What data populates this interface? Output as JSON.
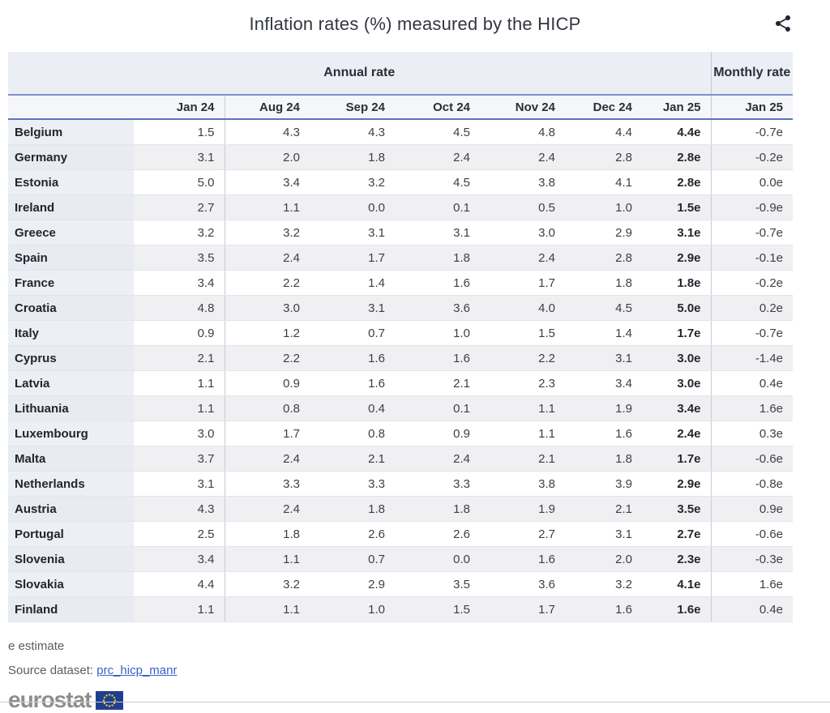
{
  "page": {
    "title": "Inflation rates (%) measured by the HICP"
  },
  "table": {
    "annual_header": "Annual rate",
    "monthly_header": "Monthly rate",
    "columns": [
      "Jan 24",
      "Aug 24",
      "Sep 24",
      "Oct 24",
      "Nov 24",
      "Dec 24",
      "Jan 25"
    ],
    "monthly_column": "Jan 25",
    "rows": [
      {
        "country": "Belgium",
        "values": [
          "1.5",
          "4.3",
          "4.3",
          "4.5",
          "4.8",
          "4.4",
          "4.4e"
        ],
        "monthly": "-0.7e"
      },
      {
        "country": "Germany",
        "values": [
          "3.1",
          "2.0",
          "1.8",
          "2.4",
          "2.4",
          "2.8",
          "2.8e"
        ],
        "monthly": "-0.2e"
      },
      {
        "country": "Estonia",
        "values": [
          "5.0",
          "3.4",
          "3.2",
          "4.5",
          "3.8",
          "4.1",
          "2.8e"
        ],
        "monthly": "0.0e"
      },
      {
        "country": "Ireland",
        "values": [
          "2.7",
          "1.1",
          "0.0",
          "0.1",
          "0.5",
          "1.0",
          "1.5e"
        ],
        "monthly": "-0.9e"
      },
      {
        "country": "Greece",
        "values": [
          "3.2",
          "3.2",
          "3.1",
          "3.1",
          "3.0",
          "2.9",
          "3.1e"
        ],
        "monthly": "-0.7e"
      },
      {
        "country": "Spain",
        "values": [
          "3.5",
          "2.4",
          "1.7",
          "1.8",
          "2.4",
          "2.8",
          "2.9e"
        ],
        "monthly": "-0.1e"
      },
      {
        "country": "France",
        "values": [
          "3.4",
          "2.2",
          "1.4",
          "1.6",
          "1.7",
          "1.8",
          "1.8e"
        ],
        "monthly": "-0.2e"
      },
      {
        "country": "Croatia",
        "values": [
          "4.8",
          "3.0",
          "3.1",
          "3.6",
          "4.0",
          "4.5",
          "5.0e"
        ],
        "monthly": "0.2e"
      },
      {
        "country": "Italy",
        "values": [
          "0.9",
          "1.2",
          "0.7",
          "1.0",
          "1.5",
          "1.4",
          "1.7e"
        ],
        "monthly": "-0.7e"
      },
      {
        "country": "Cyprus",
        "values": [
          "2.1",
          "2.2",
          "1.6",
          "1.6",
          "2.2",
          "3.1",
          "3.0e"
        ],
        "monthly": "-1.4e"
      },
      {
        "country": "Latvia",
        "values": [
          "1.1",
          "0.9",
          "1.6",
          "2.1",
          "2.3",
          "3.4",
          "3.0e"
        ],
        "monthly": "0.4e"
      },
      {
        "country": "Lithuania",
        "values": [
          "1.1",
          "0.8",
          "0.4",
          "0.1",
          "1.1",
          "1.9",
          "3.4e"
        ],
        "monthly": "1.6e"
      },
      {
        "country": "Luxembourg",
        "values": [
          "3.0",
          "1.7",
          "0.8",
          "0.9",
          "1.1",
          "1.6",
          "2.4e"
        ],
        "monthly": "0.3e"
      },
      {
        "country": "Malta",
        "values": [
          "3.7",
          "2.4",
          "2.1",
          "2.4",
          "2.1",
          "1.8",
          "1.7e"
        ],
        "monthly": "-0.6e"
      },
      {
        "country": "Netherlands",
        "values": [
          "3.1",
          "3.3",
          "3.3",
          "3.3",
          "3.8",
          "3.9",
          "2.9e"
        ],
        "monthly": "-0.8e"
      },
      {
        "country": "Austria",
        "values": [
          "4.3",
          "2.4",
          "1.8",
          "1.8",
          "1.9",
          "2.1",
          "3.5e"
        ],
        "monthly": "0.9e"
      },
      {
        "country": "Portugal",
        "values": [
          "2.5",
          "1.8",
          "2.6",
          "2.6",
          "2.7",
          "3.1",
          "2.7e"
        ],
        "monthly": "-0.6e"
      },
      {
        "country": "Slovenia",
        "values": [
          "3.4",
          "1.1",
          "0.7",
          "0.0",
          "1.6",
          "2.0",
          "2.3e"
        ],
        "monthly": "-0.3e"
      },
      {
        "country": "Slovakia",
        "values": [
          "4.4",
          "3.2",
          "2.9",
          "3.5",
          "3.6",
          "3.2",
          "4.1e"
        ],
        "monthly": "1.6e"
      },
      {
        "country": "Finland",
        "values": [
          "1.1",
          "1.1",
          "1.0",
          "1.5",
          "1.7",
          "1.6",
          "1.6e"
        ],
        "monthly": "0.4e"
      }
    ]
  },
  "footer": {
    "estimate_note": "e estimate",
    "source_label": "Source dataset:",
    "source_link_text": "prc_hicp_manr",
    "logo_text": "eurostat"
  },
  "icons": {
    "share": "share-icon",
    "eu_flag": "eu-flag-icon"
  },
  "colors": {
    "group_header_bg": "#eceef5",
    "month_row_bg": "#f5f6fa",
    "row_bg": "#ffffff",
    "row_alt_bg": "#f0f0f2",
    "country_col_bg": "#edeff6",
    "country_col_alt_bg": "#e9ebf3",
    "blue_border_top": "#7e90cc",
    "blue_border_bottom": "#5c74bd",
    "column_separator": "#c9cbd6",
    "link_blue": "#3a5fc8",
    "logo_gray": "#8d8d8d",
    "flag_blue": "#1e3f94",
    "star_yellow": "#ffd617"
  },
  "chart_data": {
    "type": "table",
    "title": "Inflation rates (%) measured by the HICP",
    "unit": "%",
    "note": "e estimate",
    "estimate_columns": [
      "Jan 25 (annual)",
      "Jan 25 (monthly)"
    ],
    "column_groups": [
      {
        "label": "Annual rate",
        "columns": [
          "Jan 24",
          "Aug 24",
          "Sep 24",
          "Oct 24",
          "Nov 24",
          "Dec 24",
          "Jan 25"
        ]
      },
      {
        "label": "Monthly rate",
        "columns": [
          "Jan 25"
        ]
      }
    ],
    "rows": [
      {
        "country": "Belgium",
        "annual": [
          1.5,
          4.3,
          4.3,
          4.5,
          4.8,
          4.4,
          4.4
        ],
        "monthly": -0.7
      },
      {
        "country": "Germany",
        "annual": [
          3.1,
          2.0,
          1.8,
          2.4,
          2.4,
          2.8,
          2.8
        ],
        "monthly": -0.2
      },
      {
        "country": "Estonia",
        "annual": [
          5.0,
          3.4,
          3.2,
          4.5,
          3.8,
          4.1,
          2.8
        ],
        "monthly": 0.0
      },
      {
        "country": "Ireland",
        "annual": [
          2.7,
          1.1,
          0.0,
          0.1,
          0.5,
          1.0,
          1.5
        ],
        "monthly": -0.9
      },
      {
        "country": "Greece",
        "annual": [
          3.2,
          3.2,
          3.1,
          3.1,
          3.0,
          2.9,
          3.1
        ],
        "monthly": -0.7
      },
      {
        "country": "Spain",
        "annual": [
          3.5,
          2.4,
          1.7,
          1.8,
          2.4,
          2.8,
          2.9
        ],
        "monthly": -0.1
      },
      {
        "country": "France",
        "annual": [
          3.4,
          2.2,
          1.4,
          1.6,
          1.7,
          1.8,
          1.8
        ],
        "monthly": -0.2
      },
      {
        "country": "Croatia",
        "annual": [
          4.8,
          3.0,
          3.1,
          3.6,
          4.0,
          4.5,
          5.0
        ],
        "monthly": 0.2
      },
      {
        "country": "Italy",
        "annual": [
          0.9,
          1.2,
          0.7,
          1.0,
          1.5,
          1.4,
          1.7
        ],
        "monthly": -0.7
      },
      {
        "country": "Cyprus",
        "annual": [
          2.1,
          2.2,
          1.6,
          1.6,
          2.2,
          3.1,
          3.0
        ],
        "monthly": -1.4
      },
      {
        "country": "Latvia",
        "annual": [
          1.1,
          0.9,
          1.6,
          2.1,
          2.3,
          3.4,
          3.0
        ],
        "monthly": 0.4
      },
      {
        "country": "Lithuania",
        "annual": [
          1.1,
          0.8,
          0.4,
          0.1,
          1.1,
          1.9,
          3.4
        ],
        "monthly": 1.6
      },
      {
        "country": "Luxembourg",
        "annual": [
          3.0,
          1.7,
          0.8,
          0.9,
          1.1,
          1.6,
          2.4
        ],
        "monthly": 0.3
      },
      {
        "country": "Malta",
        "annual": [
          3.7,
          2.4,
          2.1,
          2.4,
          2.1,
          1.8,
          1.7
        ],
        "monthly": -0.6
      },
      {
        "country": "Netherlands",
        "annual": [
          3.1,
          3.3,
          3.3,
          3.3,
          3.8,
          3.9,
          2.9
        ],
        "monthly": -0.8
      },
      {
        "country": "Austria",
        "annual": [
          4.3,
          2.4,
          1.8,
          1.8,
          1.9,
          2.1,
          3.5
        ],
        "monthly": 0.9
      },
      {
        "country": "Portugal",
        "annual": [
          2.5,
          1.8,
          2.6,
          2.6,
          2.7,
          3.1,
          2.7
        ],
        "monthly": -0.6
      },
      {
        "country": "Slovenia",
        "annual": [
          3.4,
          1.1,
          0.7,
          0.0,
          1.6,
          2.0,
          2.3
        ],
        "monthly": -0.3
      },
      {
        "country": "Slovakia",
        "annual": [
          4.4,
          3.2,
          2.9,
          3.5,
          3.6,
          3.2,
          4.1
        ],
        "monthly": 1.6
      },
      {
        "country": "Finland",
        "annual": [
          1.1,
          1.1,
          1.0,
          1.5,
          1.7,
          1.6,
          1.6
        ],
        "monthly": 0.4
      }
    ]
  }
}
